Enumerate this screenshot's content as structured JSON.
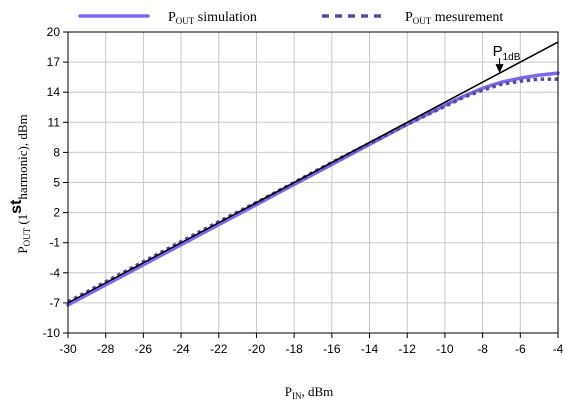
{
  "chart_data": {
    "type": "line",
    "xlabel": {
      "main": "P",
      "sub": "IN",
      "rest": ", dBm"
    },
    "ylabel": {
      "main": "P",
      "sub": "OUT",
      "pre": " (1",
      "sup": "st",
      "post": "harmonic), dBm"
    },
    "xlim": [
      -30,
      -4
    ],
    "ylim": [
      -10,
      20
    ],
    "xticks": [
      -30,
      -28,
      -26,
      -24,
      -22,
      -20,
      -18,
      -16,
      -14,
      -12,
      -10,
      -8,
      -6,
      -4
    ],
    "yticks": [
      -10,
      -7,
      -4,
      -1,
      2,
      5,
      8,
      11,
      14,
      17,
      20
    ],
    "grid": true,
    "legend_position": "top",
    "series": [
      {
        "name": {
          "main": "P",
          "sub": "OUT",
          "rest": " simulation"
        },
        "style": "solid",
        "color": "#7b68ee",
        "x": [
          -30,
          -28,
          -26,
          -24,
          -22,
          -20,
          -18,
          -16,
          -14,
          -12,
          -10,
          -9,
          -8,
          -7,
          -6,
          -5,
          -4
        ],
        "y": [
          -7.2,
          -5.2,
          -3.2,
          -1.2,
          0.8,
          2.8,
          4.8,
          6.8,
          8.8,
          10.8,
          12.7,
          13.6,
          14.4,
          15.0,
          15.4,
          15.7,
          15.9
        ]
      },
      {
        "name": {
          "main": "P",
          "sub": "OUT",
          "rest": " mesurement"
        },
        "style": "dotted",
        "color": "#5a4a9e",
        "x": [
          -30,
          -28,
          -26,
          -24,
          -22,
          -20,
          -18,
          -16,
          -14,
          -12,
          -10,
          -9,
          -8,
          -7,
          -6,
          -5,
          -4
        ],
        "y": [
          -6.9,
          -4.9,
          -2.9,
          -0.9,
          1.1,
          3.0,
          5.0,
          7.0,
          8.9,
          10.8,
          12.6,
          13.5,
          14.2,
          14.8,
          15.1,
          15.3,
          15.3
        ]
      },
      {
        "name": "",
        "style": "reference",
        "color": "#000000",
        "x": [
          -30,
          -4
        ],
        "y": [
          -7.0,
          19.0
        ]
      }
    ],
    "annotations": [
      {
        "text_main": "P",
        "text_sub": "1dB",
        "x": -7.1,
        "y": 16.0
      }
    ]
  }
}
